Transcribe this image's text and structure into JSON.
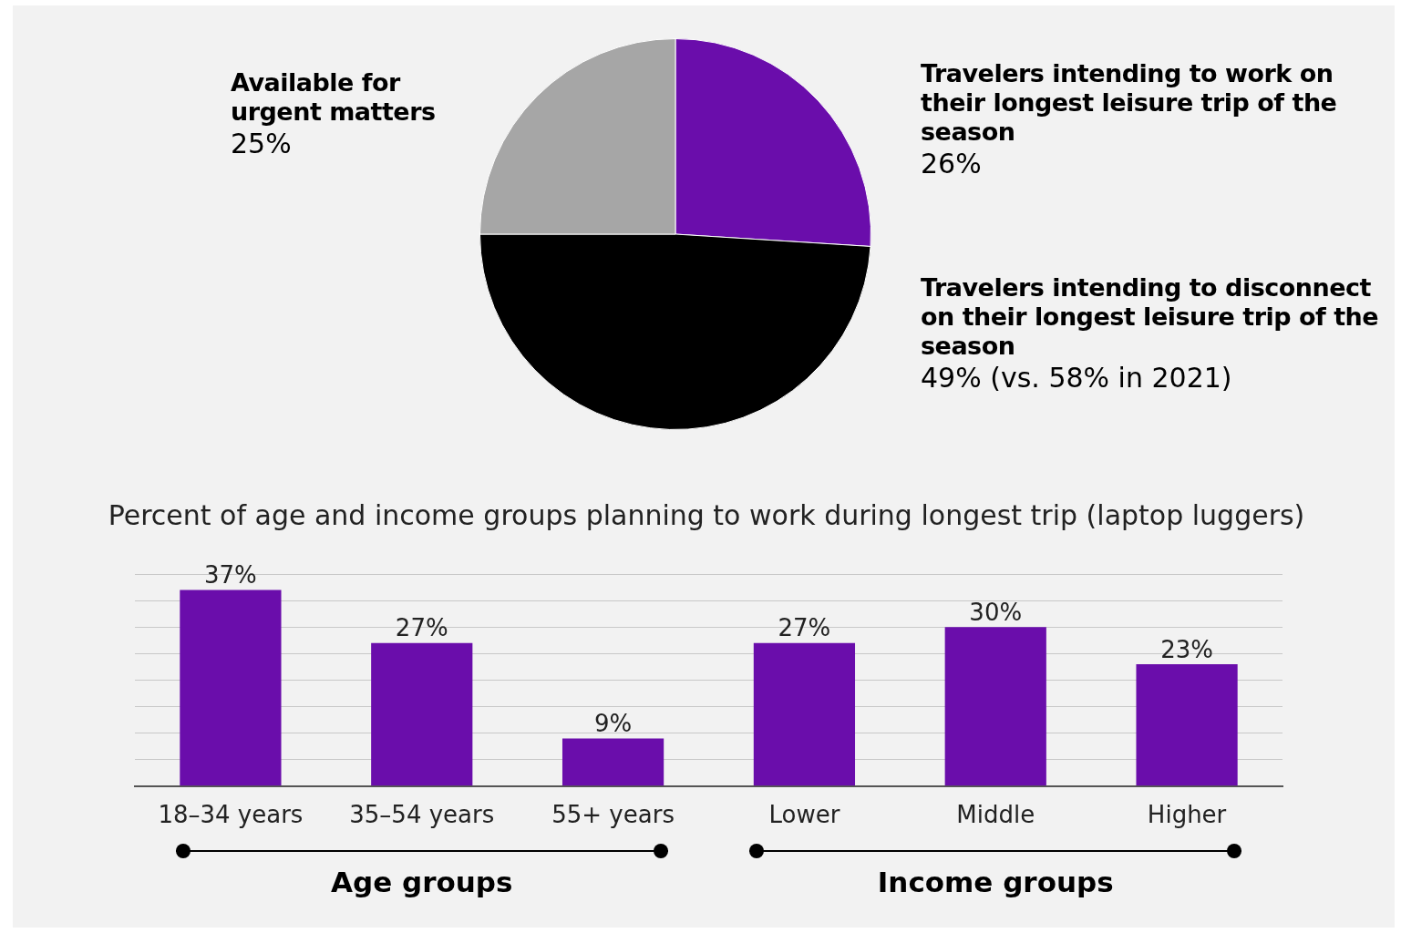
{
  "chart_data": [
    {
      "type": "pie",
      "categories": [
        "Travelers intending to work on their longest leisure trip of the season",
        "Travelers intending to disconnect on their longest leisure trip of the season",
        "Available for urgent matters"
      ],
      "values": [
        26,
        49,
        25
      ],
      "value_labels": [
        "26%",
        "49% (vs. 58% in 2021)",
        "25%"
      ],
      "colors": [
        "#6a0dab",
        "#000000",
        "#a6a6a6"
      ],
      "legend": false
    },
    {
      "type": "bar",
      "title": "Percent of age and income groups planning to work during longest trip (laptop luggers)",
      "categories": [
        "18–34 years",
        "35–54 years",
        "55+ years",
        "Lower",
        "Middle",
        "Higher"
      ],
      "values": [
        37,
        27,
        9,
        27,
        30,
        23
      ],
      "value_labels": [
        "37%",
        "27%",
        "9%",
        "27%",
        "30%",
        "23%"
      ],
      "color": "#6a0dab",
      "ylim": [
        0,
        40
      ],
      "yticks": [
        {
          "value": 0,
          "label": null
        },
        {
          "value": 5,
          "label": null
        },
        {
          "value": 10,
          "label": null
        },
        {
          "value": 15,
          "label": null
        },
        {
          "value": 20,
          "label": null
        },
        {
          "value": 25,
          "label": null
        },
        {
          "value": 30,
          "label": null
        },
        {
          "value": 35,
          "label": null
        },
        {
          "value": 40,
          "label": null
        }
      ],
      "grid": "y",
      "tick_labels": "x",
      "legend": false,
      "annotations": [
        "Age groups",
        "Income groups"
      ]
    }
  ]
}
